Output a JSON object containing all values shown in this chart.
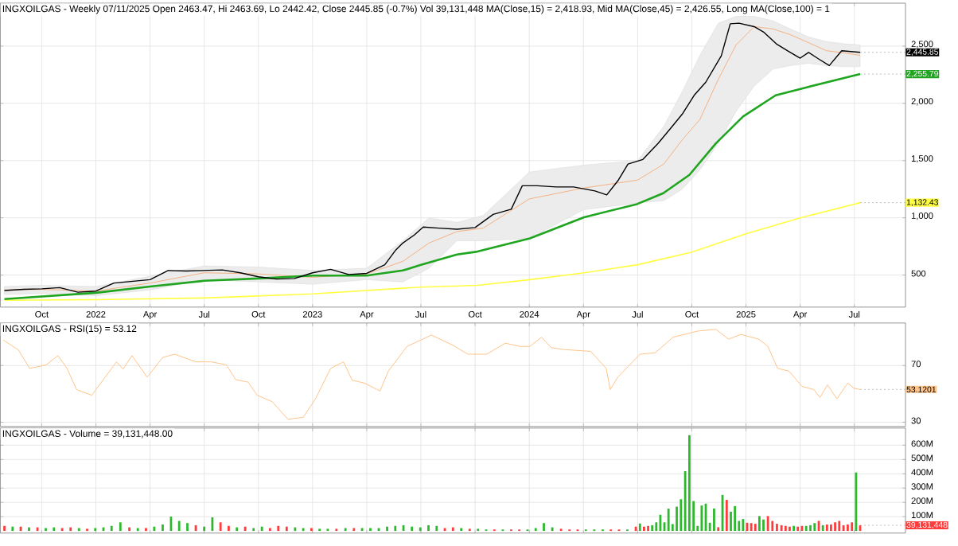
{
  "chart_data": [
    {
      "type": "line",
      "title": "INGXOILGAS - Weekly 07/11/2025 Open 2463.47, Hi 2463.69, Lo 2442.42, Close 2445.85 (-0.7%) Vol 39,131,448 MA(Close,15) = 2,418.93, Mid MA(Close,45) = 2,426.55, Long MA(Close,100) = 1",
      "xlim": [
        "2021-07-23",
        "2025-09-26"
      ],
      "ylim": [
        220,
        2875
      ],
      "xticks": [
        {
          "value": "2021-10-01",
          "label": "Oct"
        },
        {
          "value": "2022-01-01",
          "label": "2022"
        },
        {
          "value": "2022-04-01",
          "label": "Apr"
        },
        {
          "value": "2022-07-01",
          "label": "Jul"
        },
        {
          "value": "2022-10-01",
          "label": "Oct"
        },
        {
          "value": "2023-01-01",
          "label": "2023"
        },
        {
          "value": "2023-04-01",
          "label": "Apr"
        },
        {
          "value": "2023-07-01",
          "label": "Jul"
        },
        {
          "value": "2023-10-01",
          "label": "Oct"
        },
        {
          "value": "2024-01-01",
          "label": "2024"
        },
        {
          "value": "2024-04-01",
          "label": "Apr"
        },
        {
          "value": "2024-07-01",
          "label": "Jul"
        },
        {
          "value": "2024-10-01",
          "label": "Oct"
        },
        {
          "value": "2025-01-01",
          "label": "2025"
        },
        {
          "value": "2025-04-01",
          "label": "Apr"
        },
        {
          "value": "2025-07-01",
          "label": "Jul"
        }
      ],
      "yticks": [
        500,
        {
          "value": 1000,
          "label": "1,000"
        },
        {
          "value": 1500,
          "label": "1,500"
        },
        {
          "value": 2000,
          "label": "2,000"
        },
        {
          "value": 2500,
          "label": "2,500"
        }
      ],
      "grid": true,
      "series": [
        {
          "color": "#f4b183",
          "x": [
            "2021-07-30",
            "2021-10-01",
            "2022-01-01",
            "2022-04-01",
            "2022-07-01",
            "2022-10-01",
            "2023-01-01",
            "2023-04-01",
            "2023-06-01",
            "2023-07-15",
            "2023-09-01",
            "2023-10-15",
            "2024-01-01",
            "2024-04-01",
            "2024-07-01",
            "2024-08-15",
            "2024-09-15",
            "2024-10-15",
            "2024-11-15",
            "2024-12-15",
            "2025-01-15",
            "2025-02-15",
            "2025-03-15",
            "2025-04-15",
            "2025-05-15",
            "2025-06-15",
            "2025-07-11"
          ],
          "values": [
            370,
            375,
            360,
            430,
            520,
            510,
            480,
            510,
            620,
            780,
            880,
            910,
            1165,
            1260,
            1330,
            1470,
            1680,
            1860,
            2210,
            2510,
            2670,
            2650,
            2600,
            2530,
            2460,
            2440,
            2418.93
          ],
          "lower": [
            330,
            340,
            320,
            370,
            460,
            440,
            420,
            460,
            440,
            560,
            800,
            800,
            820,
            1070,
            1130,
            1150,
            1250,
            1420,
            1650,
            1930,
            2150,
            2300,
            2330,
            2350,
            2330,
            2320,
            2320
          ],
          "upper": [
            400,
            410,
            400,
            490,
            580,
            570,
            540,
            560,
            800,
            1000,
            960,
            1020,
            1400,
            1460,
            1500,
            1800,
            2100,
            2420,
            2700,
            2760,
            2760,
            2720,
            2650,
            2580,
            2540,
            2520,
            2510
          ]
        },
        {
          "color": "#ffff40",
          "x": [
            "2021-07-30",
            "2022-01-01",
            "2022-07-01",
            "2023-01-01",
            "2023-07-01",
            "2023-10-05",
            "2024-01-02",
            "2024-04-02",
            "2024-07-01",
            "2024-10-01",
            "2025-01-01",
            "2025-04-01",
            "2025-07-11"
          ],
          "values": [
            280,
            285,
            300,
            335,
            395,
            410,
            460,
            520,
            590,
            700,
            860,
            1000,
            1132.43
          ]
        },
        {
          "color": "#1fa51f",
          "x": [
            "2021-07-30",
            "2022-01-01",
            "2022-04-01",
            "2022-07-01",
            "2022-10-01",
            "2023-01-01",
            "2023-04-01",
            "2023-06-01",
            "2023-07-01",
            "2023-09-01",
            "2023-10-05",
            "2024-01-02",
            "2024-04-02",
            "2024-06-30",
            "2024-08-14",
            "2024-09-27",
            "2024-11-11",
            "2024-12-27",
            "2025-02-19",
            "2025-04-12",
            "2025-07-11"
          ],
          "values": [
            290,
            345,
            400,
            450,
            470,
            495,
            495,
            540,
            590,
            680,
            705,
            820,
            1005,
            1120,
            1215,
            1375,
            1650,
            1885,
            2070,
            2140,
            2255.79
          ]
        },
        {
          "color": "#000000",
          "x": [
            "2021-07-30",
            "2021-09-01",
            "2021-10-01",
            "2021-11-01",
            "2021-12-01",
            "2022-01-01",
            "2022-02-01",
            "2022-03-01",
            "2022-04-01",
            "2022-05-01",
            "2022-06-01",
            "2022-07-01",
            "2022-08-01",
            "2022-09-01",
            "2022-10-01",
            "2022-11-01",
            "2022-12-01",
            "2023-01-01",
            "2023-02-01",
            "2023-03-01",
            "2023-04-01",
            "2023-05-01",
            "2023-05-20",
            "2023-06-01",
            "2023-06-20",
            "2023-07-05",
            "2023-08-01",
            "2023-09-01",
            "2023-10-01",
            "2023-11-01",
            "2023-12-01",
            "2023-12-20",
            "2024-01-15",
            "2024-02-15",
            "2024-03-15",
            "2024-04-20",
            "2024-05-10",
            "2024-05-30",
            "2024-06-15",
            "2024-07-10",
            "2024-08-05",
            "2024-08-28",
            "2024-09-15",
            "2024-10-05",
            "2024-10-25",
            "2024-11-20",
            "2024-12-05",
            "2024-12-20",
            "2025-01-15",
            "2025-02-01",
            "2025-02-20",
            "2025-03-10",
            "2025-04-01",
            "2025-04-15",
            "2025-05-01",
            "2025-05-20",
            "2025-06-10",
            "2025-07-11"
          ],
          "values": [
            365,
            375,
            380,
            390,
            350,
            360,
            430,
            445,
            460,
            540,
            535,
            540,
            545,
            520,
            485,
            465,
            470,
            520,
            550,
            505,
            515,
            590,
            720,
            780,
            850,
            920,
            910,
            900,
            915,
            1030,
            1075,
            1280,
            1280,
            1270,
            1270,
            1235,
            1200,
            1330,
            1470,
            1510,
            1650,
            1790,
            1905,
            2070,
            2185,
            2415,
            2695,
            2700,
            2670,
            2620,
            2520,
            2460,
            2395,
            2445,
            2390,
            2330,
            2460,
            2445.85
          ]
        }
      ],
      "annotations": [
        {
          "text": "2,445.85",
          "x": "2025-07-11",
          "y": 2445.85
        },
        {
          "text": "2,255.79",
          "x": "2025-07-11",
          "y": 2255.79
        },
        {
          "text": "1,132.43",
          "x": "2025-07-11",
          "y": 1132.43
        }
      ]
    },
    {
      "type": "line",
      "title": "INGXOILGAS - RSI(15) = 53.12",
      "xlim": [
        "2021-07-23",
        "2025-09-26"
      ],
      "ylim": [
        27,
        100
      ],
      "tick_labels": "y",
      "grid": true,
      "xticks": [
        {
          "value": "2021-10-01",
          "label": null
        },
        {
          "value": "2022-01-01",
          "label": null
        },
        {
          "value": "2022-04-01",
          "label": null
        },
        {
          "value": "2022-07-01",
          "label": null
        },
        {
          "value": "2022-10-01",
          "label": null
        },
        {
          "value": "2023-01-01",
          "label": null
        },
        {
          "value": "2023-04-01",
          "label": null
        },
        {
          "value": "2023-07-01",
          "label": null
        },
        {
          "value": "2023-10-01",
          "label": null
        },
        {
          "value": "2024-01-01",
          "label": null
        },
        {
          "value": "2024-04-01",
          "label": null
        },
        {
          "value": "2024-07-01",
          "label": null
        },
        {
          "value": "2024-10-01",
          "label": null
        },
        {
          "value": "2025-01-01",
          "label": null
        },
        {
          "value": "2025-04-01",
          "label": null
        },
        {
          "value": "2025-07-01",
          "label": null
        }
      ],
      "yticks": [
        30,
        70
      ],
      "series": [
        {
          "color": "#ffc48a",
          "x": [
            "2021-07-28",
            "2021-08-23",
            "2021-09-11",
            "2021-10-09",
            "2021-10-29",
            "2021-11-13",
            "2021-11-29",
            "2021-12-25",
            "2022-02-05",
            "2022-02-15",
            "2022-03-01",
            "2022-03-27",
            "2022-04-22",
            "2022-05-12",
            "2022-06-17",
            "2022-07-13",
            "2022-08-08",
            "2022-08-24",
            "2022-09-14",
            "2022-09-29",
            "2022-10-25",
            "2022-11-20",
            "2022-12-16",
            "2023-01-06",
            "2023-02-01",
            "2023-02-21",
            "2023-03-07",
            "2023-03-28",
            "2023-04-23",
            "2023-05-07",
            "2023-06-08",
            "2023-07-19",
            "2023-08-25",
            "2023-09-19",
            "2023-10-21",
            "2023-11-21",
            "2023-12-16",
            "2024-01-02",
            "2024-01-22",
            "2024-02-07",
            "2024-02-27",
            "2024-04-13",
            "2024-05-09",
            "2024-05-16",
            "2024-05-29",
            "2024-07-05",
            "2024-07-31",
            "2024-08-31",
            "2024-10-11",
            "2024-11-11",
            "2024-12-02",
            "2024-12-23",
            "2025-01-23",
            "2025-02-07",
            "2025-02-22",
            "2025-03-13",
            "2025-04-04",
            "2025-04-24",
            "2025-05-04",
            "2025-05-17",
            "2025-06-02",
            "2025-06-20",
            "2025-06-30",
            "2025-07-11"
          ],
          "values": [
            88,
            81,
            68,
            70.5,
            77,
            68,
            53,
            49,
            72.6,
            67.4,
            77,
            61.8,
            75.7,
            78,
            72.6,
            72.6,
            70.5,
            60,
            58.3,
            49,
            44.4,
            32,
            33.5,
            46.5,
            68,
            72.6,
            59.6,
            57.6,
            52,
            66,
            83.5,
            91.5,
            84.3,
            78,
            78,
            85.8,
            83.5,
            83.5,
            90,
            82.7,
            81.3,
            80,
            68,
            53,
            61.8,
            78,
            79,
            90,
            94.3,
            95.6,
            88.6,
            92,
            88.6,
            83.5,
            68,
            66,
            55.3,
            53,
            47.4,
            56.4,
            46.5,
            57.6,
            54,
            53.1201
          ]
        }
      ],
      "annotations": [
        {
          "text": "53.1201",
          "x": "2025-07-11",
          "y": 53.1201
        }
      ]
    },
    {
      "type": "bar",
      "title": "INGXOILGAS - Volume = 39,131,448.00",
      "xlim": [
        "2021-07-23",
        "2025-09-26"
      ],
      "ylim": [
        -15,
        720
      ],
      "tick_labels": "y",
      "grid": true,
      "xticks": [
        {
          "value": "2021-10-01",
          "label": null
        },
        {
          "value": "2022-01-01",
          "label": null
        },
        {
          "value": "2022-04-01",
          "label": null
        },
        {
          "value": "2022-07-01",
          "label": null
        },
        {
          "value": "2022-10-01",
          "label": null
        },
        {
          "value": "2023-01-01",
          "label": null
        },
        {
          "value": "2023-04-01",
          "label": null
        },
        {
          "value": "2023-07-01",
          "label": null
        },
        {
          "value": "2023-10-01",
          "label": null
        },
        {
          "value": "2024-01-01",
          "label": null
        },
        {
          "value": "2024-04-01",
          "label": null
        },
        {
          "value": "2024-07-01",
          "label": null
        },
        {
          "value": "2024-10-01",
          "label": null
        },
        {
          "value": "2025-01-01",
          "label": null
        },
        {
          "value": "2025-04-01",
          "label": null
        },
        {
          "value": "2025-07-01",
          "label": null
        }
      ],
      "yticks": [
        {
          "value": 100,
          "label": "100M"
        },
        {
          "value": 200,
          "label": "200M"
        },
        {
          "value": 300,
          "label": "300M"
        },
        {
          "value": 400,
          "label": "400M"
        },
        {
          "value": 500,
          "label": "500M"
        },
        {
          "value": 600,
          "label": "600M"
        }
      ],
      "x": [
        "2021-07-30",
        "2021-08-13",
        "2021-08-27",
        "2021-09-10",
        "2021-09-24",
        "2021-10-08",
        "2021-10-22",
        "2021-11-05",
        "2021-11-19",
        "2021-12-03",
        "2021-12-17",
        "2021-12-31",
        "2022-01-14",
        "2022-01-28",
        "2022-02-11",
        "2022-02-25",
        "2022-03-11",
        "2022-03-25",
        "2022-04-08",
        "2022-04-22",
        "2022-05-06",
        "2022-05-20",
        "2022-06-03",
        "2022-06-17",
        "2022-07-01",
        "2022-07-15",
        "2022-07-29",
        "2022-08-12",
        "2022-08-26",
        "2022-09-09",
        "2022-09-23",
        "2022-10-07",
        "2022-10-21",
        "2022-11-04",
        "2022-11-18",
        "2022-12-02",
        "2022-12-16",
        "2022-12-30",
        "2023-01-13",
        "2023-01-27",
        "2023-02-10",
        "2023-02-24",
        "2023-03-10",
        "2023-03-24",
        "2023-04-07",
        "2023-04-21",
        "2023-05-05",
        "2023-05-19",
        "2023-06-02",
        "2023-06-16",
        "2023-06-30",
        "2023-07-14",
        "2023-07-28",
        "2023-08-11",
        "2023-08-25",
        "2023-09-08",
        "2023-09-22",
        "2023-10-06",
        "2023-10-20",
        "2023-11-03",
        "2023-11-17",
        "2023-12-01",
        "2023-12-15",
        "2023-12-29",
        "2024-01-12",
        "2024-01-26",
        "2024-02-09",
        "2024-02-23",
        "2024-03-08",
        "2024-03-22",
        "2024-04-05",
        "2024-04-19",
        "2024-05-03",
        "2024-05-17",
        "2024-05-31",
        "2024-06-14",
        "2024-06-28",
        "2024-07-05",
        "2024-07-12",
        "2024-07-19",
        "2024-07-26",
        "2024-08-02",
        "2024-08-09",
        "2024-08-16",
        "2024-08-23",
        "2024-08-30",
        "2024-09-06",
        "2024-09-13",
        "2024-09-20",
        "2024-09-27",
        "2024-10-04",
        "2024-10-11",
        "2024-10-18",
        "2024-10-25",
        "2024-11-01",
        "2024-11-08",
        "2024-11-15",
        "2024-11-22",
        "2024-11-29",
        "2024-12-06",
        "2024-12-13",
        "2024-12-20",
        "2024-12-27",
        "2025-01-03",
        "2025-01-10",
        "2025-01-17",
        "2025-01-24",
        "2025-01-31",
        "2025-02-07",
        "2025-02-14",
        "2025-02-21",
        "2025-02-28",
        "2025-03-07",
        "2025-03-14",
        "2025-03-21",
        "2025-03-28",
        "2025-04-04",
        "2025-04-11",
        "2025-04-18",
        "2025-04-25",
        "2025-05-02",
        "2025-05-09",
        "2025-05-16",
        "2025-05-23",
        "2025-05-30",
        "2025-06-06",
        "2025-06-13",
        "2025-06-20",
        "2025-06-27",
        "2025-07-04",
        "2025-07-11"
      ],
      "values": [
        35,
        30,
        30,
        25,
        25,
        20,
        25,
        20,
        25,
        20,
        15,
        20,
        25,
        35,
        60,
        25,
        20,
        20,
        30,
        45,
        100,
        70,
        55,
        40,
        30,
        95,
        60,
        35,
        25,
        30,
        20,
        30,
        20,
        35,
        30,
        25,
        20,
        20,
        15,
        15,
        15,
        20,
        20,
        20,
        20,
        20,
        30,
        35,
        40,
        30,
        25,
        40,
        35,
        20,
        25,
        20,
        15,
        15,
        10,
        10,
        10,
        10,
        10,
        10,
        20,
        55,
        25,
        15,
        10,
        10,
        10,
        10,
        10,
        10,
        10,
        10,
        30,
        52,
        30,
        35,
        40,
        60,
        113,
        60,
        156,
        48,
        170,
        222,
        418,
        670,
        209,
        35,
        178,
        191,
        57,
        157,
        26,
        252,
        217,
        135,
        174,
        70,
        83,
        57,
        55,
        50,
        104,
        80,
        104,
        70,
        50,
        40,
        35,
        30,
        35,
        30,
        35,
        35,
        40,
        55,
        70,
        40,
        45,
        45,
        60,
        70,
        40,
        45,
        60,
        409,
        39.131448
      ],
      "colors": [
        "#ff3b3b",
        "#2db82d",
        "#ff3b3b",
        "#2db82d",
        "#ff3b3b",
        "#2db82d",
        "#2db82d",
        "#ff3b3b",
        "#ff3b3b",
        "#2db82d",
        "#ff3b3b",
        "#2db82d",
        "#2db82d",
        "#2db82d",
        "#2db82d",
        "#ff3b3b",
        "#2db82d",
        "#ff3b3b",
        "#2db82d",
        "#2db82d",
        "#2db82d",
        "#2db82d",
        "#2db82d",
        "#ff3b3b",
        "#2db82d",
        "#2db82d",
        "#ff3b3b",
        "#ff3b3b",
        "#2db82d",
        "#ff3b3b",
        "#2db82d",
        "#2db82d",
        "#ff3b3b",
        "#ff3b3b",
        "#ff3b3b",
        "#2db82d",
        "#2db82d",
        "#ff3b3b",
        "#2db82d",
        "#2db82d",
        "#ff3b3b",
        "#2db82d",
        "#ff3b3b",
        "#2db82d",
        "#2db82d",
        "#2db82d",
        "#2db82d",
        "#2db82d",
        "#2db82d",
        "#2db82d",
        "#2db82d",
        "#2db82d",
        "#2db82d",
        "#ff3b3b",
        "#ff3b3b",
        "#2db82d",
        "#ff3b3b",
        "#2db82d",
        "#2db82d",
        "#ff3b3b",
        "#2db82d",
        "#ff3b3b",
        "#ff3b3b",
        "#2db82d",
        "#2db82d",
        "#2db82d",
        "#2db82d",
        "#ff3b3b",
        "#ff3b3b",
        "#ff3b3b",
        "#2db82d",
        "#2db82d",
        "#2db82d",
        "#ff3b3b",
        "#ff3b3b",
        "#2db82d",
        "#ff3b3b",
        "#2db82d",
        "#ff3b3b",
        "#ff3b3b",
        "#2db82d",
        "#2db82d",
        "#2db82d",
        "#2db82d",
        "#2db82d",
        "#2db82d",
        "#2db82d",
        "#2db82d",
        "#2db82d",
        "#2db82d",
        "#2db82d",
        "#2db82d",
        "#2db82d",
        "#2db82d",
        "#2db82d",
        "#2db82d",
        "#ff3b3b",
        "#2db82d",
        "#ff3b3b",
        "#2db82d",
        "#2db82d",
        "#2db82d",
        "#2db82d",
        "#ff3b3b",
        "#ff3b3b",
        "#ff3b3b",
        "#2db82d",
        "#2db82d",
        "#ff3b3b",
        "#ff3b3b",
        "#ff3b3b",
        "#ff3b3b",
        "#ff3b3b",
        "#ff3b3b",
        "#2db82d",
        "#ff3b3b",
        "#ff3b3b",
        "#2db82d",
        "#2db82d",
        "#2db82d",
        "#ff3b3b",
        "#2db82d",
        "#ff3b3b",
        "#ff3b3b",
        "#ff3b3b",
        "#ff3b3b",
        "#ff3b3b",
        "#ff3b3b",
        "#ff3b3b",
        "#2db82d",
        "#ff3b3b"
      ],
      "annotations": [
        {
          "text": "39,131,448",
          "x": "2025-07-11",
          "y": 39.131448
        }
      ]
    }
  ]
}
